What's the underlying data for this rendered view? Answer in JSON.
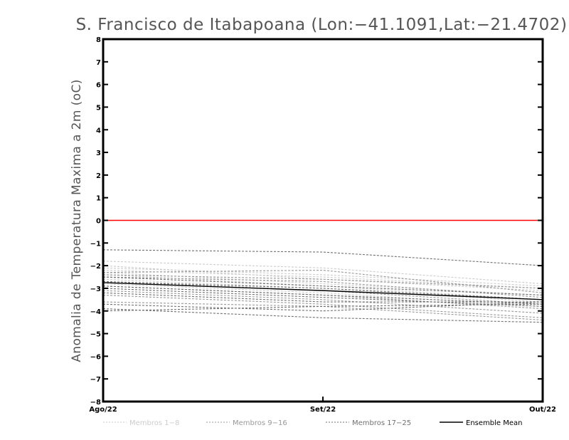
{
  "chart_data": {
    "type": "line",
    "title": "S. Francisco de Itabapoana (Lon:−41.1091,Lat:−21.4702)",
    "xlabel": "",
    "ylabel": "Anomalia de Temperatura Maxima a 2m (oC)",
    "categories": [
      "Ago/22",
      "Set/22",
      "Out/22"
    ],
    "ylim": [
      -8,
      8
    ],
    "yticks": [
      "8",
      "7",
      "6",
      "5",
      "4",
      "3",
      "2",
      "1",
      "0",
      "−1",
      "−2",
      "−3",
      "−4",
      "−5",
      "−6",
      "−7",
      "−8"
    ],
    "ytick_values": [
      8,
      7,
      6,
      5,
      4,
      3,
      2,
      1,
      0,
      -1,
      -2,
      -3,
      -4,
      -5,
      -6,
      -7,
      -8
    ],
    "grid": false,
    "legend_position": "bottom",
    "reference_line": {
      "value": 0,
      "color": "#ff0000"
    },
    "legend": [
      {
        "label": "Membros 1−8",
        "color": "#cccccc",
        "style": "dashed"
      },
      {
        "label": "Membros 9−16",
        "color": "#999999",
        "style": "dashed"
      },
      {
        "label": "Membros 17−25",
        "color": "#707070",
        "style": "dashed"
      },
      {
        "label": "Ensemble Mean",
        "color": "#000000",
        "style": "solid"
      }
    ],
    "groups": [
      {
        "name": "Membros 1−8",
        "color": "#cccccc",
        "members": [
          [
            -1.8,
            -2.1,
            -2.8
          ],
          [
            -2.2,
            -2.5,
            -3.0
          ],
          [
            -2.0,
            -2.6,
            -3.1
          ],
          [
            -2.3,
            -2.8,
            -3.3
          ],
          [
            -2.4,
            -2.9,
            -3.5
          ],
          [
            -2.6,
            -3.0,
            -3.6
          ],
          [
            -2.1,
            -2.4,
            -2.9
          ],
          [
            -2.8,
            -3.2,
            -3.8
          ]
        ]
      },
      {
        "name": "Membros 9−16",
        "color": "#999999",
        "members": [
          [
            -2.3,
            -2.2,
            -3.2
          ],
          [
            -2.5,
            -2.7,
            -3.4
          ],
          [
            -2.7,
            -3.1,
            -3.7
          ],
          [
            -2.9,
            -3.3,
            -3.9
          ],
          [
            -3.1,
            -3.5,
            -4.1
          ],
          [
            -2.4,
            -2.6,
            -3.0
          ],
          [
            -3.3,
            -3.7,
            -4.3
          ],
          [
            -3.6,
            -3.8,
            -4.4
          ]
        ]
      },
      {
        "name": "Membros 17−25",
        "color": "#707070",
        "members": [
          [
            -1.3,
            -1.4,
            -2.0
          ],
          [
            -2.5,
            -2.9,
            -3.3
          ],
          [
            -2.7,
            -3.0,
            -3.5
          ],
          [
            -2.9,
            -3.3,
            -3.7
          ],
          [
            -3.0,
            -3.4,
            -3.8
          ],
          [
            -3.2,
            -3.6,
            -3.6
          ],
          [
            -3.7,
            -4.0,
            -3.6
          ],
          [
            -4.0,
            -3.8,
            -3.7
          ],
          [
            -3.9,
            -4.3,
            -4.5
          ]
        ]
      }
    ],
    "ensemble_mean": [
      -2.75,
      -3.1,
      -3.5
    ]
  }
}
